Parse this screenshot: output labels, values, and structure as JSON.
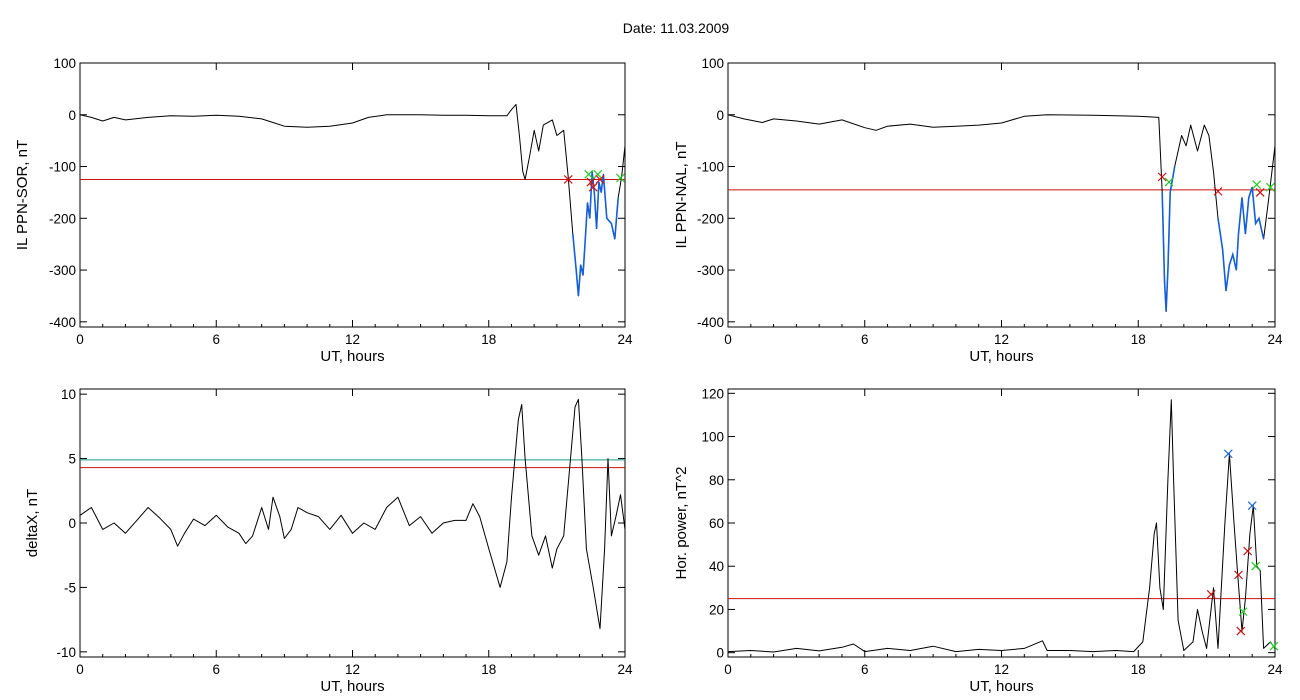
{
  "page": {
    "title": "Date:  11.03.2009"
  },
  "colors": {
    "trace": "#000000",
    "threshold_red": "#cc1111",
    "threshold_teal": "#1a9a86",
    "highlight_blue": "#1560d8",
    "marker_red": "#cc1111",
    "marker_green": "#22cc22",
    "marker_blue": "#1a6ad8"
  },
  "chart_data": [
    {
      "id": "sor",
      "type": "line",
      "xlabel": "UT, hours",
      "ylabel": "IL PPN-SOR, nT",
      "xlim": [
        0,
        24
      ],
      "ylim": [
        -410,
        100
      ],
      "xticks": [
        0,
        6,
        12,
        18,
        24
      ],
      "yticks": [
        100,
        0,
        -100,
        -200,
        -300,
        -400
      ],
      "series": [
        {
          "values": [
            [
              0,
              0
            ],
            [
              0.5,
              -5
            ],
            [
              1,
              -12
            ],
            [
              1.5,
              -5
            ],
            [
              2,
              -10
            ],
            [
              3,
              -5
            ],
            [
              4,
              -2
            ],
            [
              5,
              -3
            ],
            [
              6,
              -1
            ],
            [
              7,
              -3
            ],
            [
              8,
              -8
            ],
            [
              8.5,
              -15
            ],
            [
              9,
              -22
            ],
            [
              10,
              -24
            ],
            [
              11,
              -22
            ],
            [
              12,
              -16
            ],
            [
              12.7,
              -5
            ],
            [
              13.5,
              0
            ],
            [
              15,
              0
            ],
            [
              16,
              -1
            ],
            [
              17,
              -1
            ],
            [
              18,
              -2
            ],
            [
              18.8,
              -2
            ],
            [
              19.0,
              10
            ],
            [
              19.2,
              20
            ],
            [
              19.35,
              -40
            ],
            [
              19.5,
              -110
            ],
            [
              19.6,
              -125
            ],
            [
              19.8,
              -80
            ],
            [
              20.0,
              -30
            ],
            [
              20.2,
              -70
            ],
            [
              20.4,
              -20
            ],
            [
              20.8,
              -10
            ],
            [
              21.0,
              -40
            ],
            [
              21.3,
              -30
            ],
            [
              21.5,
              -120
            ],
            [
              21.7,
              -230
            ],
            [
              21.85,
              -300
            ],
            [
              21.95,
              -350
            ],
            [
              22.05,
              -290
            ],
            [
              22.15,
              -310
            ],
            [
              22.25,
              -240
            ],
            [
              22.35,
              -170
            ],
            [
              22.45,
              -200
            ],
            [
              22.55,
              -110
            ],
            [
              22.65,
              -150
            ],
            [
              22.75,
              -220
            ],
            [
              22.85,
              -130
            ],
            [
              22.95,
              -150
            ],
            [
              23.05,
              -115
            ],
            [
              23.2,
              -200
            ],
            [
              23.4,
              -210
            ],
            [
              23.55,
              -240
            ],
            [
              23.7,
              -160
            ],
            [
              23.85,
              -120
            ],
            [
              24,
              -60
            ]
          ]
        }
      ],
      "thresholds": [
        {
          "color": "red",
          "value": -125
        }
      ],
      "highlight": {
        "from": 21.6,
        "to": 23.7
      },
      "markers": [
        {
          "x": 21.5,
          "y": -125,
          "color": "red"
        },
        {
          "x": 22.4,
          "y": -115,
          "color": "green"
        },
        {
          "x": 22.5,
          "y": -130,
          "color": "red"
        },
        {
          "x": 22.6,
          "y": -140,
          "color": "red"
        },
        {
          "x": 22.8,
          "y": -115,
          "color": "green"
        },
        {
          "x": 22.9,
          "y": -125,
          "color": "red"
        },
        {
          "x": 23.8,
          "y": -122,
          "color": "green"
        }
      ]
    },
    {
      "id": "nal",
      "type": "line",
      "xlabel": "UT, hours",
      "ylabel": "IL PPN-NAL, nT",
      "xlim": [
        0,
        24
      ],
      "ylim": [
        -410,
        100
      ],
      "xticks": [
        0,
        6,
        12,
        18,
        24
      ],
      "yticks": [
        100,
        0,
        -100,
        -200,
        -300,
        -400
      ],
      "series": [
        {
          "values": [
            [
              0,
              0
            ],
            [
              0.7,
              -8
            ],
            [
              1.5,
              -15
            ],
            [
              2,
              -8
            ],
            [
              3,
              -12
            ],
            [
              4,
              -18
            ],
            [
              5,
              -10
            ],
            [
              6,
              -25
            ],
            [
              6.5,
              -30
            ],
            [
              7,
              -22
            ],
            [
              8,
              -18
            ],
            [
              9,
              -24
            ],
            [
              10,
              -22
            ],
            [
              11,
              -20
            ],
            [
              12,
              -16
            ],
            [
              13,
              -3
            ],
            [
              14,
              0
            ],
            [
              16,
              -1
            ],
            [
              18,
              -3
            ],
            [
              18.9,
              -5
            ],
            [
              19.05,
              -150
            ],
            [
              19.15,
              -320
            ],
            [
              19.22,
              -380
            ],
            [
              19.3,
              -300
            ],
            [
              19.4,
              -150
            ],
            [
              19.6,
              -100
            ],
            [
              19.9,
              -40
            ],
            [
              20.1,
              -60
            ],
            [
              20.3,
              -20
            ],
            [
              20.6,
              -70
            ],
            [
              20.9,
              -20
            ],
            [
              21.1,
              -40
            ],
            [
              21.3,
              -110
            ],
            [
              21.5,
              -200
            ],
            [
              21.7,
              -260
            ],
            [
              21.85,
              -340
            ],
            [
              22.0,
              -290
            ],
            [
              22.15,
              -270
            ],
            [
              22.3,
              -300
            ],
            [
              22.4,
              -230
            ],
            [
              22.55,
              -160
            ],
            [
              22.7,
              -230
            ],
            [
              22.85,
              -160
            ],
            [
              23.0,
              -140
            ],
            [
              23.15,
              -210
            ],
            [
              23.3,
              -200
            ],
            [
              23.5,
              -240
            ],
            [
              23.7,
              -170
            ],
            [
              24,
              -60
            ]
          ]
        }
      ],
      "thresholds": [
        {
          "color": "red",
          "value": -145
        }
      ],
      "highlight": {
        "from": 19.0,
        "to": 19.7,
        "from2": 21.4,
        "to2": 23.6
      },
      "markers": [
        {
          "x": 19.05,
          "y": -120,
          "color": "red"
        },
        {
          "x": 19.35,
          "y": -130,
          "color": "green"
        },
        {
          "x": 21.5,
          "y": -148,
          "color": "red"
        },
        {
          "x": 23.2,
          "y": -135,
          "color": "green"
        },
        {
          "x": 23.35,
          "y": -150,
          "color": "red"
        },
        {
          "x": 23.8,
          "y": -140,
          "color": "green"
        }
      ]
    },
    {
      "id": "deltax",
      "type": "line",
      "xlabel": "UT, hours",
      "ylabel": "deltaX, nT",
      "xlim": [
        0,
        24
      ],
      "ylim": [
        -10.4,
        10.4
      ],
      "xticks": [
        0,
        6,
        12,
        18,
        24
      ],
      "yticks": [
        10,
        5,
        0,
        -5,
        -10
      ],
      "series": [
        {
          "values": [
            [
              0,
              0.6
            ],
            [
              0.5,
              1.2
            ],
            [
              1,
              -0.5
            ],
            [
              1.5,
              0
            ],
            [
              2,
              -0.8
            ],
            [
              2.5,
              0.2
            ],
            [
              3,
              1.2
            ],
            [
              3.5,
              0.4
            ],
            [
              4,
              -0.5
            ],
            [
              4.3,
              -1.8
            ],
            [
              4.6,
              -0.8
            ],
            [
              5,
              0.3
            ],
            [
              5.5,
              -0.2
            ],
            [
              6,
              0.6
            ],
            [
              6.5,
              -0.3
            ],
            [
              7,
              -0.8
            ],
            [
              7.3,
              -1.6
            ],
            [
              7.6,
              -1.0
            ],
            [
              8,
              1.2
            ],
            [
              8.3,
              -0.5
            ],
            [
              8.5,
              2.0
            ],
            [
              8.8,
              0.5
            ],
            [
              9,
              -1.2
            ],
            [
              9.3,
              -0.5
            ],
            [
              9.6,
              1.2
            ],
            [
              10,
              0.8
            ],
            [
              10.5,
              0.5
            ],
            [
              11,
              -0.5
            ],
            [
              11.5,
              0.6
            ],
            [
              12,
              -0.8
            ],
            [
              12.5,
              0
            ],
            [
              13,
              -0.5
            ],
            [
              13.5,
              1.2
            ],
            [
              14,
              2.0
            ],
            [
              14.5,
              -0.2
            ],
            [
              15,
              0.5
            ],
            [
              15.5,
              -0.8
            ],
            [
              16,
              0
            ],
            [
              16.5,
              0.2
            ],
            [
              17,
              0.2
            ],
            [
              17.3,
              1.5
            ],
            [
              17.6,
              0.5
            ],
            [
              18,
              -2
            ],
            [
              18.5,
              -5.0
            ],
            [
              18.8,
              -3
            ],
            [
              19.0,
              2
            ],
            [
              19.3,
              8
            ],
            [
              19.45,
              9.2
            ],
            [
              19.6,
              5
            ],
            [
              19.9,
              -1
            ],
            [
              20.2,
              -2.5
            ],
            [
              20.5,
              -1
            ],
            [
              20.8,
              -3.5
            ],
            [
              21.0,
              -2
            ],
            [
              21.3,
              -1
            ],
            [
              21.6,
              5
            ],
            [
              21.8,
              9
            ],
            [
              21.95,
              9.6
            ],
            [
              22.1,
              5
            ],
            [
              22.3,
              -2
            ],
            [
              22.6,
              -5
            ],
            [
              22.9,
              -8.2
            ],
            [
              23.1,
              -2
            ],
            [
              23.25,
              5
            ],
            [
              23.4,
              -1
            ],
            [
              23.6,
              0.5
            ],
            [
              23.8,
              2.2
            ],
            [
              24,
              -0.5
            ]
          ]
        }
      ],
      "thresholds": [
        {
          "color": "teal",
          "value": 4.9
        },
        {
          "color": "red",
          "value": 4.3
        }
      ]
    },
    {
      "id": "hpower",
      "type": "line",
      "xlabel": "UT, hours",
      "ylabel": "Hor. power, nT^2",
      "xlim": [
        0,
        24
      ],
      "ylim": [
        -2,
        122
      ],
      "xticks": [
        0,
        6,
        12,
        18,
        24
      ],
      "yticks": [
        120,
        100,
        80,
        60,
        40,
        20,
        0
      ],
      "series": [
        {
          "values": [
            [
              0,
              0.5
            ],
            [
              1,
              1
            ],
            [
              2,
              0.3
            ],
            [
              3,
              2
            ],
            [
              4,
              0.8
            ],
            [
              5,
              2.5
            ],
            [
              5.5,
              4
            ],
            [
              6,
              0.5
            ],
            [
              7,
              2
            ],
            [
              8,
              1
            ],
            [
              9,
              3
            ],
            [
              10,
              0.5
            ],
            [
              11,
              1.5
            ],
            [
              12,
              1
            ],
            [
              13,
              2
            ],
            [
              13.8,
              5.5
            ],
            [
              14,
              1
            ],
            [
              15,
              1
            ],
            [
              16,
              0.5
            ],
            [
              17,
              1
            ],
            [
              17.8,
              0.5
            ],
            [
              18.2,
              5
            ],
            [
              18.5,
              30
            ],
            [
              18.7,
              55
            ],
            [
              18.8,
              60
            ],
            [
              18.95,
              30
            ],
            [
              19.1,
              20
            ],
            [
              19.3,
              80
            ],
            [
              19.45,
              117
            ],
            [
              19.55,
              80
            ],
            [
              19.75,
              15
            ],
            [
              20.0,
              1
            ],
            [
              20.4,
              5
            ],
            [
              20.6,
              20
            ],
            [
              20.8,
              10
            ],
            [
              21.0,
              2
            ],
            [
              21.3,
              30
            ],
            [
              21.5,
              2
            ],
            [
              21.8,
              60
            ],
            [
              22.0,
              92
            ],
            [
              22.2,
              60
            ],
            [
              22.35,
              38
            ],
            [
              22.55,
              10
            ],
            [
              22.7,
              25
            ],
            [
              22.9,
              55
            ],
            [
              23.05,
              68
            ],
            [
              23.2,
              40
            ],
            [
              23.35,
              38
            ],
            [
              23.5,
              2
            ],
            [
              23.8,
              5
            ],
            [
              24,
              2
            ]
          ]
        }
      ],
      "thresholds": [
        {
          "color": "red",
          "value": 25
        }
      ],
      "markers": [
        {
          "x": 21.2,
          "y": 27,
          "color": "red"
        },
        {
          "x": 21.95,
          "y": 92,
          "color": "blue"
        },
        {
          "x": 22.4,
          "y": 36,
          "color": "red"
        },
        {
          "x": 22.5,
          "y": 10,
          "color": "red"
        },
        {
          "x": 22.6,
          "y": 19,
          "color": "green"
        },
        {
          "x": 22.8,
          "y": 47,
          "color": "red"
        },
        {
          "x": 23.0,
          "y": 68,
          "color": "blue"
        },
        {
          "x": 23.15,
          "y": 40,
          "color": "green"
        },
        {
          "x": 23.95,
          "y": 3,
          "color": "green"
        }
      ]
    }
  ]
}
